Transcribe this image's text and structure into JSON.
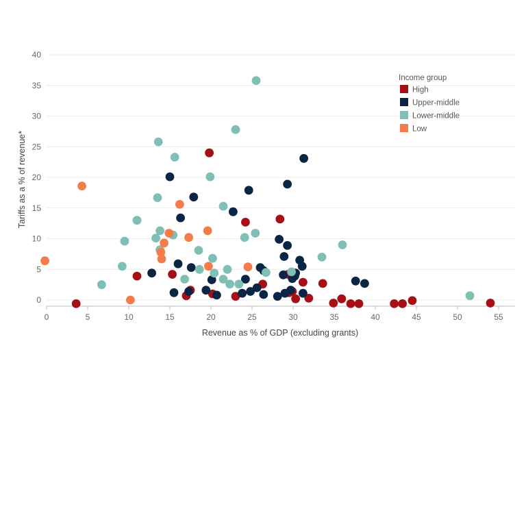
{
  "chart_data": {
    "type": "scatter",
    "title": "",
    "xlabel": "Revenue as % of GDP (excluding grants)",
    "ylabel": "Tariffs as a % of revenue*",
    "xlim": [
      0,
      57
    ],
    "ylim": [
      -1,
      40
    ],
    "x_ticks": [
      "0",
      "5",
      "10",
      "15",
      "20",
      "25",
      "30",
      "35",
      "40",
      "45",
      "50",
      "55"
    ],
    "y_ticks": [
      "0",
      "5",
      "10",
      "15",
      "20",
      "25",
      "30",
      "35",
      "40"
    ],
    "grid": "horizontal",
    "legend": {
      "title": "Income group",
      "placement": "top-right",
      "entries": [
        {
          "name": "High",
          "color": "#a50f15"
        },
        {
          "name": "Upper-middle",
          "color": "#0b2545"
        },
        {
          "name": "Lower-middle",
          "color": "#7fbfb6"
        },
        {
          "name": "Low",
          "color": "#f47c4a"
        }
      ]
    },
    "series": [
      {
        "name": "High",
        "color": "#a50f15",
        "points": [
          [
            3.6,
            -0.6
          ],
          [
            11,
            3.9
          ],
          [
            15.3,
            4.2
          ],
          [
            17,
            0.7
          ],
          [
            17.5,
            1.6
          ],
          [
            19.8,
            24
          ],
          [
            20.2,
            1
          ],
          [
            23,
            0.6
          ],
          [
            24.2,
            12.7
          ],
          [
            26.3,
            2.6
          ],
          [
            28.4,
            13.2
          ],
          [
            29.4,
            4.2
          ],
          [
            29.5,
            1.2
          ],
          [
            29.9,
            1.4
          ],
          [
            30.3,
            0.2
          ],
          [
            31.2,
            2.9
          ],
          [
            31.9,
            0.3
          ],
          [
            33.6,
            2.7
          ],
          [
            34.9,
            -0.5
          ],
          [
            35.9,
            0.2
          ],
          [
            37,
            -0.6
          ],
          [
            38,
            -0.6
          ],
          [
            42.3,
            -0.6
          ],
          [
            43.3,
            -0.6
          ],
          [
            44.5,
            -0.1
          ],
          [
            54,
            -0.5
          ]
        ]
      },
      {
        "name": "Upper-middle",
        "color": "#0b2545",
        "points": [
          [
            12.8,
            4.4
          ],
          [
            15,
            20.1
          ],
          [
            15.5,
            1.2
          ],
          [
            16,
            5.9
          ],
          [
            16.3,
            13.4
          ],
          [
            17.3,
            1.4
          ],
          [
            17.6,
            5.3
          ],
          [
            17.9,
            16.8
          ],
          [
            19.4,
            1.6
          ],
          [
            20.1,
            3.3
          ],
          [
            20.7,
            0.8
          ],
          [
            22.7,
            14.4
          ],
          [
            23.8,
            1.1
          ],
          [
            24.2,
            3.4
          ],
          [
            24.6,
            17.9
          ],
          [
            24.8,
            1.4
          ],
          [
            25.6,
            2
          ],
          [
            26,
            5.3
          ],
          [
            26.4,
            0.9
          ],
          [
            26.4,
            4.8
          ],
          [
            28.1,
            0.6
          ],
          [
            28.3,
            9.9
          ],
          [
            28.8,
            4.1
          ],
          [
            28.9,
            7.1
          ],
          [
            29,
            1.1
          ],
          [
            29.3,
            18.9
          ],
          [
            29.3,
            8.9
          ],
          [
            29.7,
            1.6
          ],
          [
            29.9,
            3.5
          ],
          [
            30.2,
            3.9
          ],
          [
            30.3,
            4.4
          ],
          [
            30.8,
            6.5
          ],
          [
            31.1,
            5.5
          ],
          [
            31.2,
            1.1
          ],
          [
            31.3,
            23.1
          ],
          [
            37.6,
            3.1
          ],
          [
            38.7,
            2.7
          ]
        ]
      },
      {
        "name": "Lower-middle",
        "color": "#7fbfb6",
        "points": [
          [
            6.7,
            2.5
          ],
          [
            9.2,
            5.5
          ],
          [
            9.5,
            9.6
          ],
          [
            11,
            13
          ],
          [
            13.3,
            10.1
          ],
          [
            13.5,
            16.7
          ],
          [
            13.6,
            25.8
          ],
          [
            13.8,
            11.3
          ],
          [
            13.8,
            8.2
          ],
          [
            15.4,
            10.6
          ],
          [
            15.6,
            23.3
          ],
          [
            16.8,
            3.4
          ],
          [
            18.5,
            8.1
          ],
          [
            18.6,
            5
          ],
          [
            19.9,
            20.1
          ],
          [
            20.2,
            6.8
          ],
          [
            20.4,
            4.4
          ],
          [
            21.5,
            15.3
          ],
          [
            21.5,
            3.4
          ],
          [
            22,
            5
          ],
          [
            22.3,
            2.6
          ],
          [
            23,
            27.8
          ],
          [
            23.4,
            2.6
          ],
          [
            24.1,
            10.2
          ],
          [
            25.4,
            10.9
          ],
          [
            25.5,
            35.8
          ],
          [
            26.7,
            4.5
          ],
          [
            29.8,
            4.6
          ],
          [
            33.5,
            7
          ],
          [
            36,
            9
          ],
          [
            51.5,
            0.7
          ]
        ]
      },
      {
        "name": "Low",
        "color": "#f47c4a",
        "points": [
          [
            -0.2,
            6.4
          ],
          [
            4.3,
            18.6
          ],
          [
            10.2,
            0
          ],
          [
            13.9,
            7.8
          ],
          [
            14,
            6.7
          ],
          [
            14.3,
            9.3
          ],
          [
            14.9,
            10.9
          ],
          [
            16.2,
            15.6
          ],
          [
            17.3,
            10.2
          ],
          [
            19.6,
            11.3
          ],
          [
            19.7,
            5.5
          ],
          [
            24.5,
            5.4
          ]
        ]
      }
    ]
  }
}
